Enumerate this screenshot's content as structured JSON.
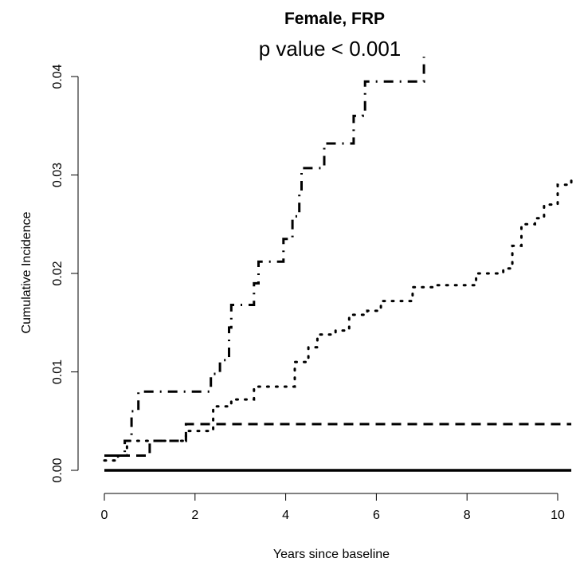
{
  "chart_data": {
    "type": "line",
    "title": "Female, FRP",
    "subtitle": "p value < 0.001",
    "xlabel": "Years since baseline",
    "ylabel": "Cumulative Incidence",
    "xlim": [
      0,
      10.3
    ],
    "ylim": [
      0,
      0.042
    ],
    "xticks": [
      0,
      2,
      4,
      6,
      8,
      10
    ],
    "xtick_labels": [
      "0",
      "2",
      "4",
      "6",
      "8",
      "10"
    ],
    "yticks": [
      0,
      0.01,
      0.02,
      0.03,
      0.04
    ],
    "ytick_labels": [
      "0.00",
      "0.01",
      "0.02",
      "0.03",
      "0.04"
    ],
    "grid": false,
    "legend": "none",
    "line_color": "#000000",
    "series": [
      {
        "style": "solid",
        "points": [
          [
            0,
            0
          ],
          [
            10.3,
            0
          ]
        ]
      },
      {
        "style": "dashed",
        "points": [
          [
            0,
            0.0015
          ],
          [
            0.5,
            0.0015
          ],
          [
            0.5,
            0.0015
          ],
          [
            1.0,
            0.0015
          ],
          [
            1.0,
            0.003
          ],
          [
            1.8,
            0.003
          ],
          [
            1.8,
            0.0047
          ],
          [
            10.3,
            0.0047
          ]
        ]
      },
      {
        "style": "dotted",
        "points": [
          [
            0,
            0.001
          ],
          [
            0.1,
            0.001
          ],
          [
            0.3,
            0.0015
          ],
          [
            0.5,
            0.003
          ],
          [
            1.0,
            0.003
          ],
          [
            1.4,
            0.003
          ],
          [
            1.8,
            0.004
          ],
          [
            2.4,
            0.0065
          ],
          [
            2.8,
            0.0072
          ],
          [
            3.3,
            0.0085
          ],
          [
            3.9,
            0.0085
          ],
          [
            4.2,
            0.011
          ],
          [
            4.5,
            0.0125
          ],
          [
            4.7,
            0.0138
          ],
          [
            5.1,
            0.0142
          ],
          [
            5.4,
            0.0158
          ],
          [
            5.8,
            0.0162
          ],
          [
            6.1,
            0.0172
          ],
          [
            6.5,
            0.0172
          ],
          [
            6.8,
            0.0186
          ],
          [
            7.3,
            0.0188
          ],
          [
            7.9,
            0.0188
          ],
          [
            8.2,
            0.02
          ],
          [
            8.8,
            0.0205
          ],
          [
            9.0,
            0.0228
          ],
          [
            9.2,
            0.025
          ],
          [
            9.5,
            0.0256
          ],
          [
            9.7,
            0.027
          ],
          [
            10.0,
            0.029
          ],
          [
            10.3,
            0.0295
          ]
        ]
      },
      {
        "style": "dotdash",
        "points": [
          [
            0,
            0.0015
          ],
          [
            0.4,
            0.0015
          ],
          [
            0.45,
            0.003
          ],
          [
            0.6,
            0.006
          ],
          [
            0.75,
            0.008
          ],
          [
            2.35,
            0.008
          ],
          [
            2.35,
            0.0098
          ],
          [
            2.55,
            0.0112
          ],
          [
            2.75,
            0.0145
          ],
          [
            2.8,
            0.0168
          ],
          [
            3.25,
            0.0168
          ],
          [
            3.3,
            0.019
          ],
          [
            3.4,
            0.0212
          ],
          [
            3.9,
            0.0212
          ],
          [
            3.95,
            0.0235
          ],
          [
            4.15,
            0.0258
          ],
          [
            4.3,
            0.0284
          ],
          [
            4.35,
            0.0307
          ],
          [
            4.8,
            0.0307
          ],
          [
            4.85,
            0.0332
          ],
          [
            5.45,
            0.0332
          ],
          [
            5.5,
            0.036
          ],
          [
            5.7,
            0.0362
          ],
          [
            5.75,
            0.0395
          ],
          [
            7.0,
            0.0395
          ],
          [
            7.05,
            0.042
          ]
        ]
      }
    ]
  }
}
